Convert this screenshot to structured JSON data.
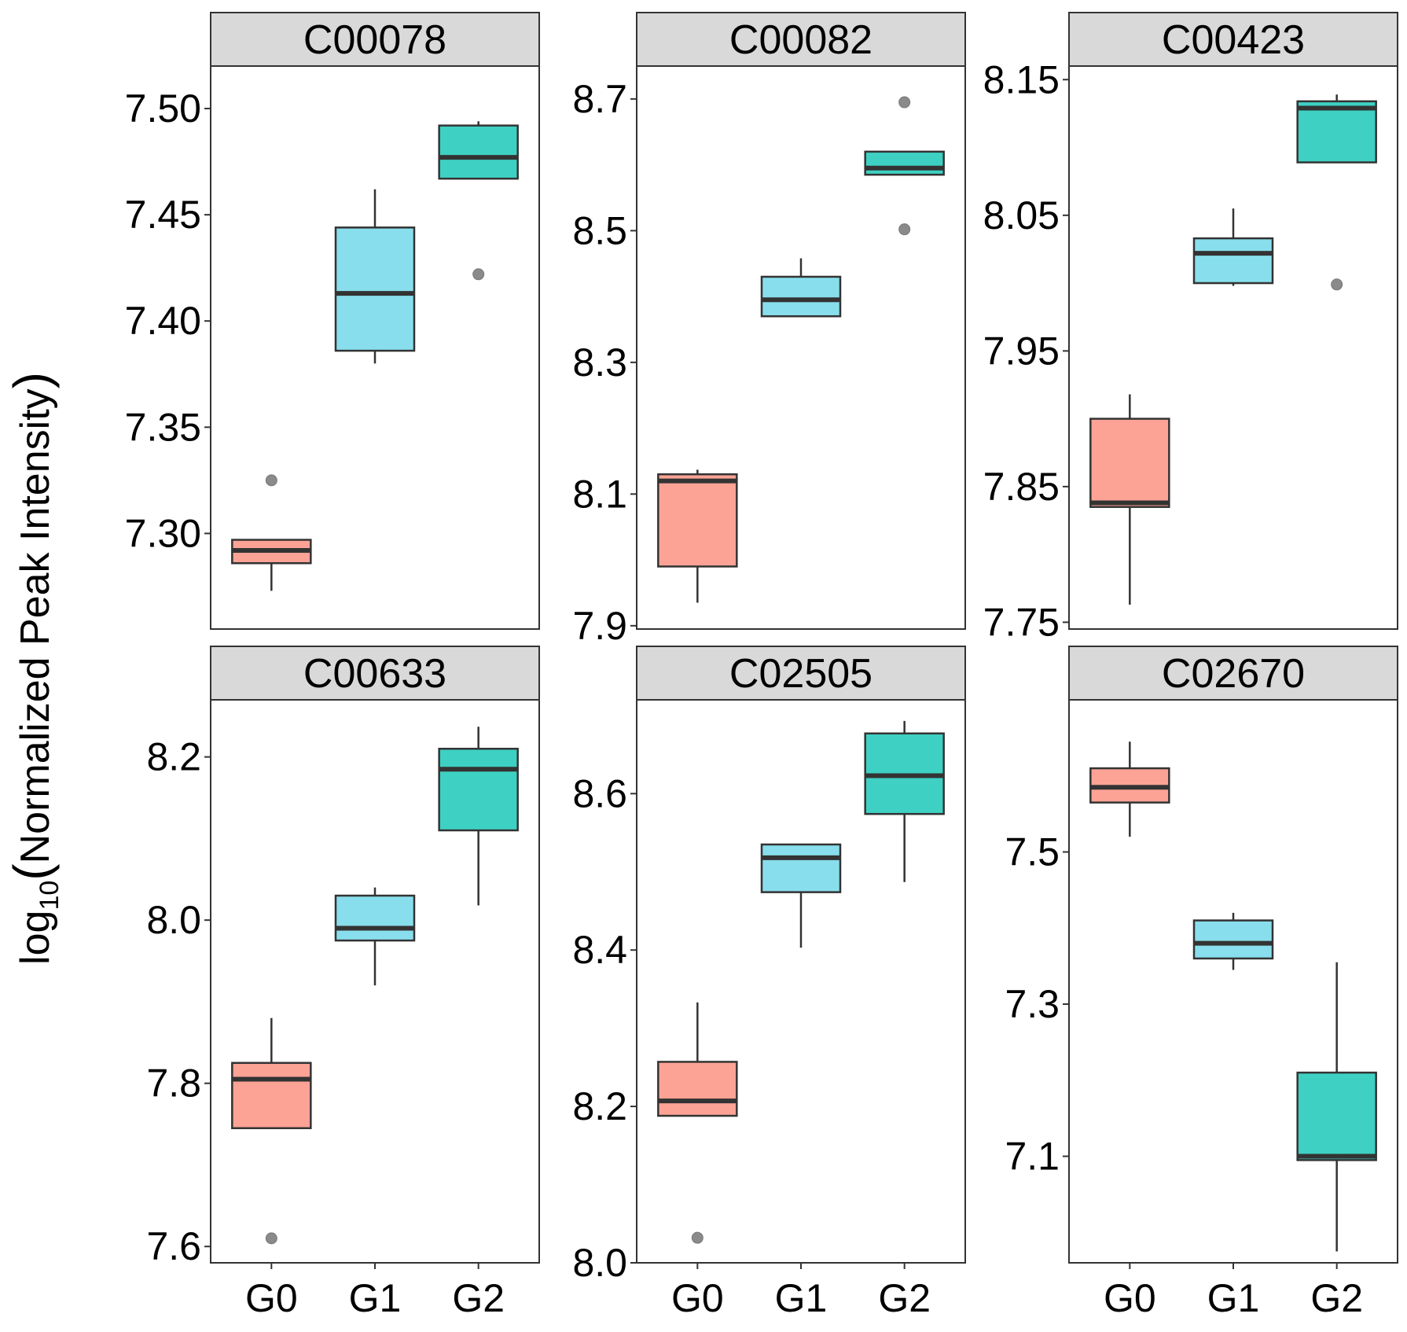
{
  "chart_data": {
    "type": "boxplot",
    "ylabel": {
      "prefix": "log",
      "sub": "10",
      "paren_open": "(",
      "body": "Normalized Peak Intensity",
      "paren_close": ")"
    },
    "categories": [
      "G0",
      "G1",
      "G2"
    ],
    "colors": {
      "G0": "#FCA396",
      "G1": "#88DEEC",
      "G2": "#3ED1C3"
    },
    "facets": [
      {
        "title": "C00078",
        "ylim": [
          7.255,
          7.52
        ],
        "ticks": [
          "7.50",
          "7.45",
          "7.40",
          "7.35",
          "7.30"
        ],
        "boxes": [
          {
            "group": "G0",
            "low": 7.273,
            "q1": 7.286,
            "median": 7.292,
            "q3": 7.297,
            "high": 7.297,
            "outliers": [
              7.325
            ]
          },
          {
            "group": "G1",
            "low": 7.38,
            "q1": 7.386,
            "median": 7.413,
            "q3": 7.444,
            "high": 7.462,
            "outliers": []
          },
          {
            "group": "G2",
            "low": 7.467,
            "q1": 7.467,
            "median": 7.477,
            "q3": 7.492,
            "high": 7.494,
            "outliers": [
              7.422
            ]
          }
        ]
      },
      {
        "title": "C00082",
        "ylim": [
          7.895,
          8.75
        ],
        "ticks": [
          "8.7",
          "8.5",
          "8.3",
          "8.1",
          "7.9"
        ],
        "boxes": [
          {
            "group": "G0",
            "low": 7.935,
            "q1": 7.99,
            "median": 8.12,
            "q3": 8.13,
            "high": 8.137,
            "outliers": []
          },
          {
            "group": "G1",
            "low": 8.37,
            "q1": 8.37,
            "median": 8.395,
            "q3": 8.43,
            "high": 8.458,
            "outliers": []
          },
          {
            "group": "G2",
            "low": 8.585,
            "q1": 8.585,
            "median": 8.595,
            "q3": 8.62,
            "high": 8.62,
            "outliers": [
              8.695,
              8.502
            ]
          }
        ]
      },
      {
        "title": "C00423",
        "ylim": [
          7.745,
          8.16
        ],
        "ticks": [
          "8.15",
          "8.05",
          "7.95",
          "7.85",
          "7.75"
        ],
        "boxes": [
          {
            "group": "G0",
            "low": 7.763,
            "q1": 7.835,
            "median": 7.838,
            "q3": 7.9,
            "high": 7.918,
            "outliers": []
          },
          {
            "group": "G1",
            "low": 7.998,
            "q1": 8.0,
            "median": 8.022,
            "q3": 8.033,
            "high": 8.055,
            "outliers": []
          },
          {
            "group": "G2",
            "low": 8.089,
            "q1": 8.089,
            "median": 8.129,
            "q3": 8.134,
            "high": 8.139,
            "outliers": [
              7.999
            ]
          }
        ]
      },
      {
        "title": "C00633",
        "ylim": [
          7.58,
          8.27
        ],
        "ticks": [
          "8.2",
          "8.0",
          "7.8",
          "7.6"
        ],
        "boxes": [
          {
            "group": "G0",
            "low": 7.745,
            "q1": 7.745,
            "median": 7.805,
            "q3": 7.825,
            "high": 7.88,
            "outliers": [
              7.61
            ]
          },
          {
            "group": "G1",
            "low": 7.92,
            "q1": 7.975,
            "median": 7.99,
            "q3": 8.03,
            "high": 8.04,
            "outliers": []
          },
          {
            "group": "G2",
            "low": 8.018,
            "q1": 8.11,
            "median": 8.185,
            "q3": 8.21,
            "high": 8.237,
            "outliers": []
          }
        ]
      },
      {
        "title": "C02505",
        "ylim": [
          8.0,
          8.72
        ],
        "ticks": [
          "8.6",
          "8.4",
          "8.2",
          "8.0"
        ],
        "boxes": [
          {
            "group": "G0",
            "low": 8.188,
            "q1": 8.188,
            "median": 8.207,
            "q3": 8.257,
            "high": 8.333,
            "outliers": [
              8.032
            ]
          },
          {
            "group": "G1",
            "low": 8.403,
            "q1": 8.474,
            "median": 8.518,
            "q3": 8.535,
            "high": 8.535,
            "outliers": []
          },
          {
            "group": "G2",
            "low": 8.487,
            "q1": 8.574,
            "median": 8.623,
            "q3": 8.677,
            "high": 8.693,
            "outliers": []
          }
        ]
      },
      {
        "title": "C02670",
        "ylim": [
          6.96,
          7.7
        ],
        "ticks": [
          "7.5",
          "7.3",
          "7.1"
        ],
        "boxes": [
          {
            "group": "G0",
            "low": 7.52,
            "q1": 7.565,
            "median": 7.585,
            "q3": 7.61,
            "high": 7.645,
            "outliers": []
          },
          {
            "group": "G1",
            "low": 7.345,
            "q1": 7.36,
            "median": 7.38,
            "q3": 7.41,
            "high": 7.42,
            "outliers": []
          },
          {
            "group": "G2",
            "low": 6.975,
            "q1": 7.095,
            "median": 7.1,
            "q3": 7.21,
            "high": 7.355,
            "outliers": []
          }
        ]
      }
    ]
  }
}
